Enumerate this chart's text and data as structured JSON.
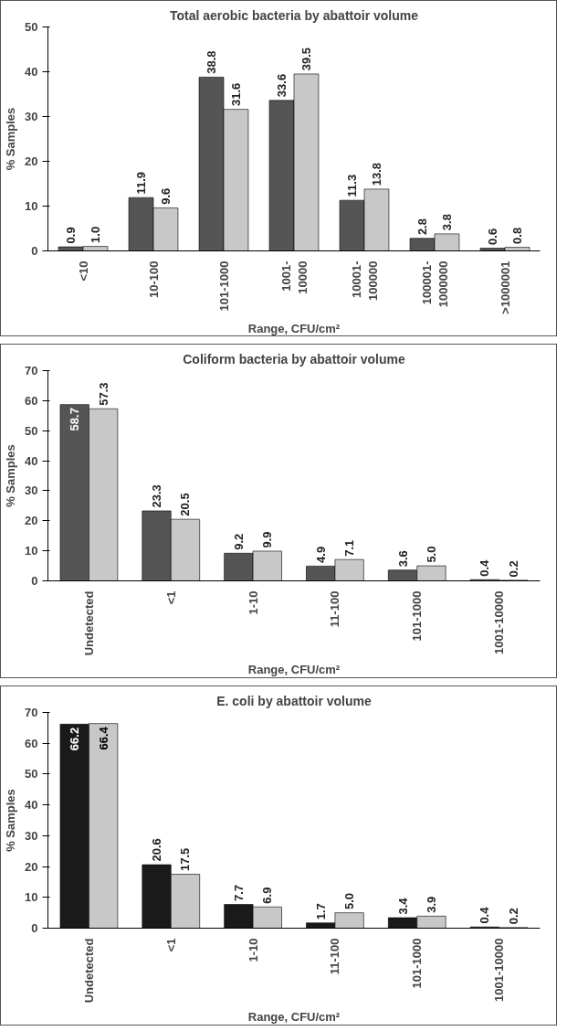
{
  "chart_data": [
    {
      "type": "bar",
      "title": "Total aerobic bacteria by abattoir volume",
      "xlabel": "Range, CFU/cm²",
      "ylabel": "% Samples",
      "categories": [
        "<10",
        "10-100",
        "101-1000",
        "1001-\n10000",
        "10001-\n100000",
        "100001-\n1000000",
        ">1000001"
      ],
      "series": [
        {
          "color": "#555555",
          "values": [
            0.9,
            11.9,
            38.8,
            33.6,
            11.3,
            2.8,
            0.6
          ],
          "value_labels": [
            "0.9",
            "11.9",
            "38.8",
            "33.6",
            "11.3",
            "2.8",
            "0.6"
          ]
        },
        {
          "color": "#c8c8c8",
          "values": [
            1.0,
            9.6,
            31.6,
            39.5,
            13.8,
            3.8,
            0.8
          ],
          "value_labels": [
            "1.0",
            "9.6",
            "31.6",
            "39.5",
            "13.8",
            "3.8",
            "0.8"
          ]
        }
      ],
      "ylim": [
        0,
        50
      ],
      "yticks": [
        0,
        10,
        20,
        30,
        40,
        50
      ],
      "grid": false
    },
    {
      "type": "bar",
      "title": "Coliform bacteria by abattoir volume",
      "xlabel": "Range, CFU/cm²",
      "ylabel": "% Samples",
      "categories": [
        "Undetected",
        "<1",
        "1-10",
        "11-100",
        "101-1000",
        "1001-10000"
      ],
      "series": [
        {
          "color": "#555555",
          "values": [
            58.7,
            23.3,
            9.2,
            4.9,
            3.6,
            0.4
          ],
          "value_labels": [
            "58.7",
            "23.3",
            "9.2",
            "4.9",
            "3.6",
            "0.4"
          ]
        },
        {
          "color": "#c8c8c8",
          "values": [
            57.3,
            20.5,
            9.9,
            7.1,
            5.0,
            0.2
          ],
          "value_labels": [
            "57.3",
            "20.5",
            "9.9",
            "7.1",
            "5.0",
            "0.2"
          ]
        }
      ],
      "ylim": [
        0,
        70
      ],
      "yticks": [
        0,
        10,
        20,
        30,
        40,
        50,
        60,
        70
      ],
      "grid": false
    },
    {
      "type": "bar",
      "title": "E. coli by abattoir volume",
      "xlabel": "Range, CFU/cm²",
      "ylabel": "% Samples",
      "categories": [
        "Undetected",
        "<1",
        "1-10",
        "11-100",
        "101-1000",
        "1001-10000"
      ],
      "series": [
        {
          "color": "#1a1a1a",
          "values": [
            66.2,
            20.6,
            7.7,
            1.7,
            3.4,
            0.4
          ],
          "value_labels": [
            "66.2",
            "20.6",
            "7.7",
            "1.7",
            "3.4",
            "0.4"
          ]
        },
        {
          "color": "#c8c8c8",
          "values": [
            66.4,
            17.5,
            6.9,
            5.0,
            3.9,
            0.2
          ],
          "value_labels": [
            "66.4",
            "17.5",
            "6.9",
            "5.0",
            "3.9",
            "0.2"
          ]
        }
      ],
      "ylim": [
        0,
        70
      ],
      "yticks": [
        0,
        10,
        20,
        30,
        40,
        50,
        60,
        70
      ],
      "grid": false
    }
  ]
}
